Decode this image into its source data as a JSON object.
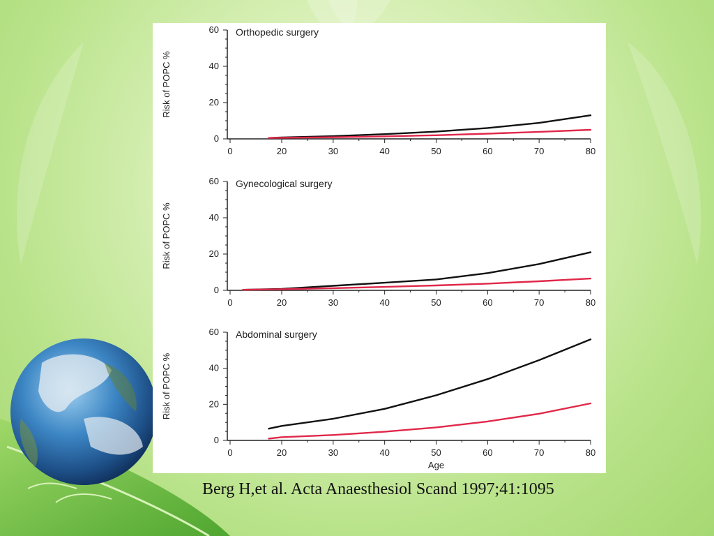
{
  "slide": {
    "citation": "Berg H,et al. Acta Anaesthesiol Scand 1997;41:1095"
  },
  "colors": {
    "series_black": "#111111",
    "series_red": "#e0284a",
    "axis": "#222222"
  },
  "chart_data": [
    {
      "type": "line",
      "title": "Orthopedic surgery",
      "xlabel": "",
      "ylabel": "Risk of POPC %",
      "xlim": [
        0,
        80
      ],
      "ylim": [
        0,
        60
      ],
      "xticks": [
        0,
        20,
        30,
        40,
        50,
        60,
        70,
        80
      ],
      "yticks": [
        0,
        20,
        40,
        60
      ],
      "series": [
        {
          "color": "#111111",
          "x": [
            15,
            20,
            30,
            40,
            50,
            60,
            70,
            80
          ],
          "y": [
            0.5,
            0.8,
            1.5,
            2.6,
            4.0,
            6.0,
            8.8,
            13.0
          ]
        },
        {
          "color": "#e0284a",
          "x": [
            15,
            20,
            30,
            40,
            50,
            60,
            70,
            80
          ],
          "y": [
            0.5,
            0.6,
            0.9,
            1.4,
            2.0,
            2.9,
            3.9,
            5.0
          ]
        }
      ]
    },
    {
      "type": "line",
      "title": "Gynecological surgery",
      "xlabel": "",
      "ylabel": "Risk of POPC %",
      "xlim": [
        0,
        80
      ],
      "ylim": [
        0,
        60
      ],
      "xticks": [
        0,
        20,
        30,
        40,
        50,
        60,
        70,
        80
      ],
      "yticks": [
        0,
        20,
        40,
        60
      ],
      "series": [
        {
          "color": "#111111",
          "x": [
            5,
            20,
            30,
            40,
            50,
            60,
            70,
            80
          ],
          "y": [
            0.3,
            0.8,
            2.5,
            4.2,
            6.0,
            9.5,
            14.5,
            21.0
          ]
        },
        {
          "color": "#e0284a",
          "x": [
            5,
            20,
            30,
            40,
            50,
            60,
            70,
            80
          ],
          "y": [
            0.3,
            0.6,
            1.2,
            1.9,
            2.7,
            3.7,
            5.0,
            6.5
          ]
        }
      ]
    },
    {
      "type": "line",
      "title": "Abdominal surgery",
      "xlabel": "Age",
      "ylabel": "Risk of POPC %",
      "xlim": [
        0,
        80
      ],
      "ylim": [
        0,
        60
      ],
      "xticks": [
        0,
        20,
        30,
        40,
        50,
        60,
        70,
        80
      ],
      "yticks": [
        0,
        20,
        40,
        60
      ],
      "series": [
        {
          "color": "#111111",
          "x": [
            15,
            20,
            30,
            40,
            50,
            60,
            70,
            80
          ],
          "y": [
            6.5,
            8.0,
            12.0,
            17.5,
            25.0,
            34.0,
            44.5,
            56.0
          ]
        },
        {
          "color": "#e0284a",
          "x": [
            15,
            20,
            30,
            40,
            50,
            60,
            70,
            80
          ],
          "y": [
            1.0,
            1.8,
            3.0,
            4.8,
            7.2,
            10.5,
            14.8,
            20.5
          ]
        }
      ]
    }
  ]
}
